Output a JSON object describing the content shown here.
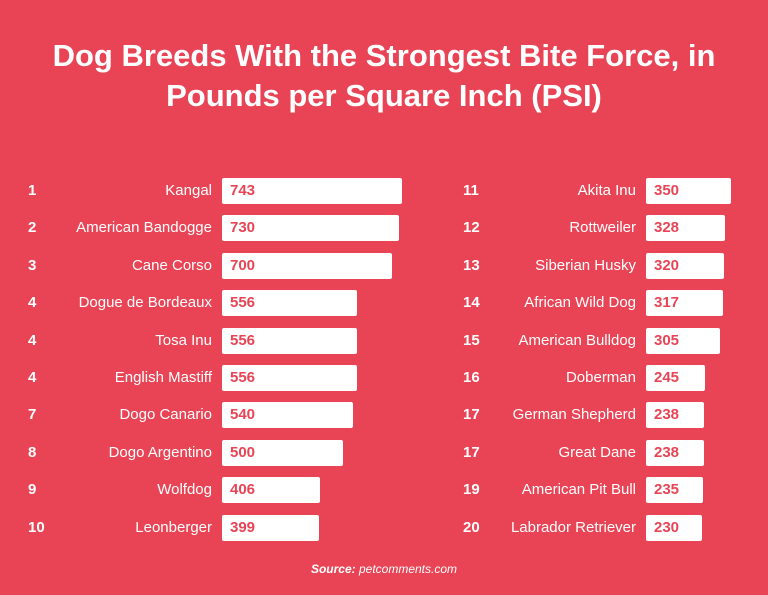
{
  "chart_data": {
    "type": "bar",
    "orientation": "horizontal",
    "title": "Dog Breeds With the Strongest Bite Force, in Pounds per Square Inch (PSI)",
    "source_label": "Source:",
    "source": "petcomments.com",
    "colors": {
      "background": "#E84455",
      "bar": "#FFFFFF",
      "value_text": "#E84455",
      "text": "#FFFFFF"
    },
    "rows": [
      {
        "rank": "1",
        "breed": "Kangal",
        "psi": 743
      },
      {
        "rank": "2",
        "breed": "American Bandogge",
        "psi": 730
      },
      {
        "rank": "3",
        "breed": "Cane Corso",
        "psi": 700
      },
      {
        "rank": "4",
        "breed": "Dogue de Bordeaux",
        "psi": 556
      },
      {
        "rank": "4",
        "breed": "Tosa Inu",
        "psi": 556
      },
      {
        "rank": "4",
        "breed": "English Mastiff",
        "psi": 556
      },
      {
        "rank": "7",
        "breed": "Dogo Canario",
        "psi": 540
      },
      {
        "rank": "8",
        "breed": "Dogo Argentino",
        "psi": 500
      },
      {
        "rank": "9",
        "breed": "Wolfdog",
        "psi": 406
      },
      {
        "rank": "10",
        "breed": "Leonberger",
        "psi": 399
      },
      {
        "rank": "11",
        "breed": "Akita Inu",
        "psi": 350
      },
      {
        "rank": "12",
        "breed": "Rottweiler",
        "psi": 328
      },
      {
        "rank": "13",
        "breed": "Siberian Husky",
        "psi": 320
      },
      {
        "rank": "14",
        "breed": "African Wild Dog",
        "psi": 317
      },
      {
        "rank": "15",
        "breed": "American Bulldog",
        "psi": 305
      },
      {
        "rank": "16",
        "breed": "Doberman",
        "psi": 245
      },
      {
        "rank": "17",
        "breed": "German Shepherd",
        "psi": 238
      },
      {
        "rank": "17",
        "breed": "Great Dane",
        "psi": 238
      },
      {
        "rank": "19",
        "breed": "American Pit Bull",
        "psi": 235
      },
      {
        "rank": "20",
        "breed": "Labrador Retriever",
        "psi": 230
      }
    ]
  }
}
